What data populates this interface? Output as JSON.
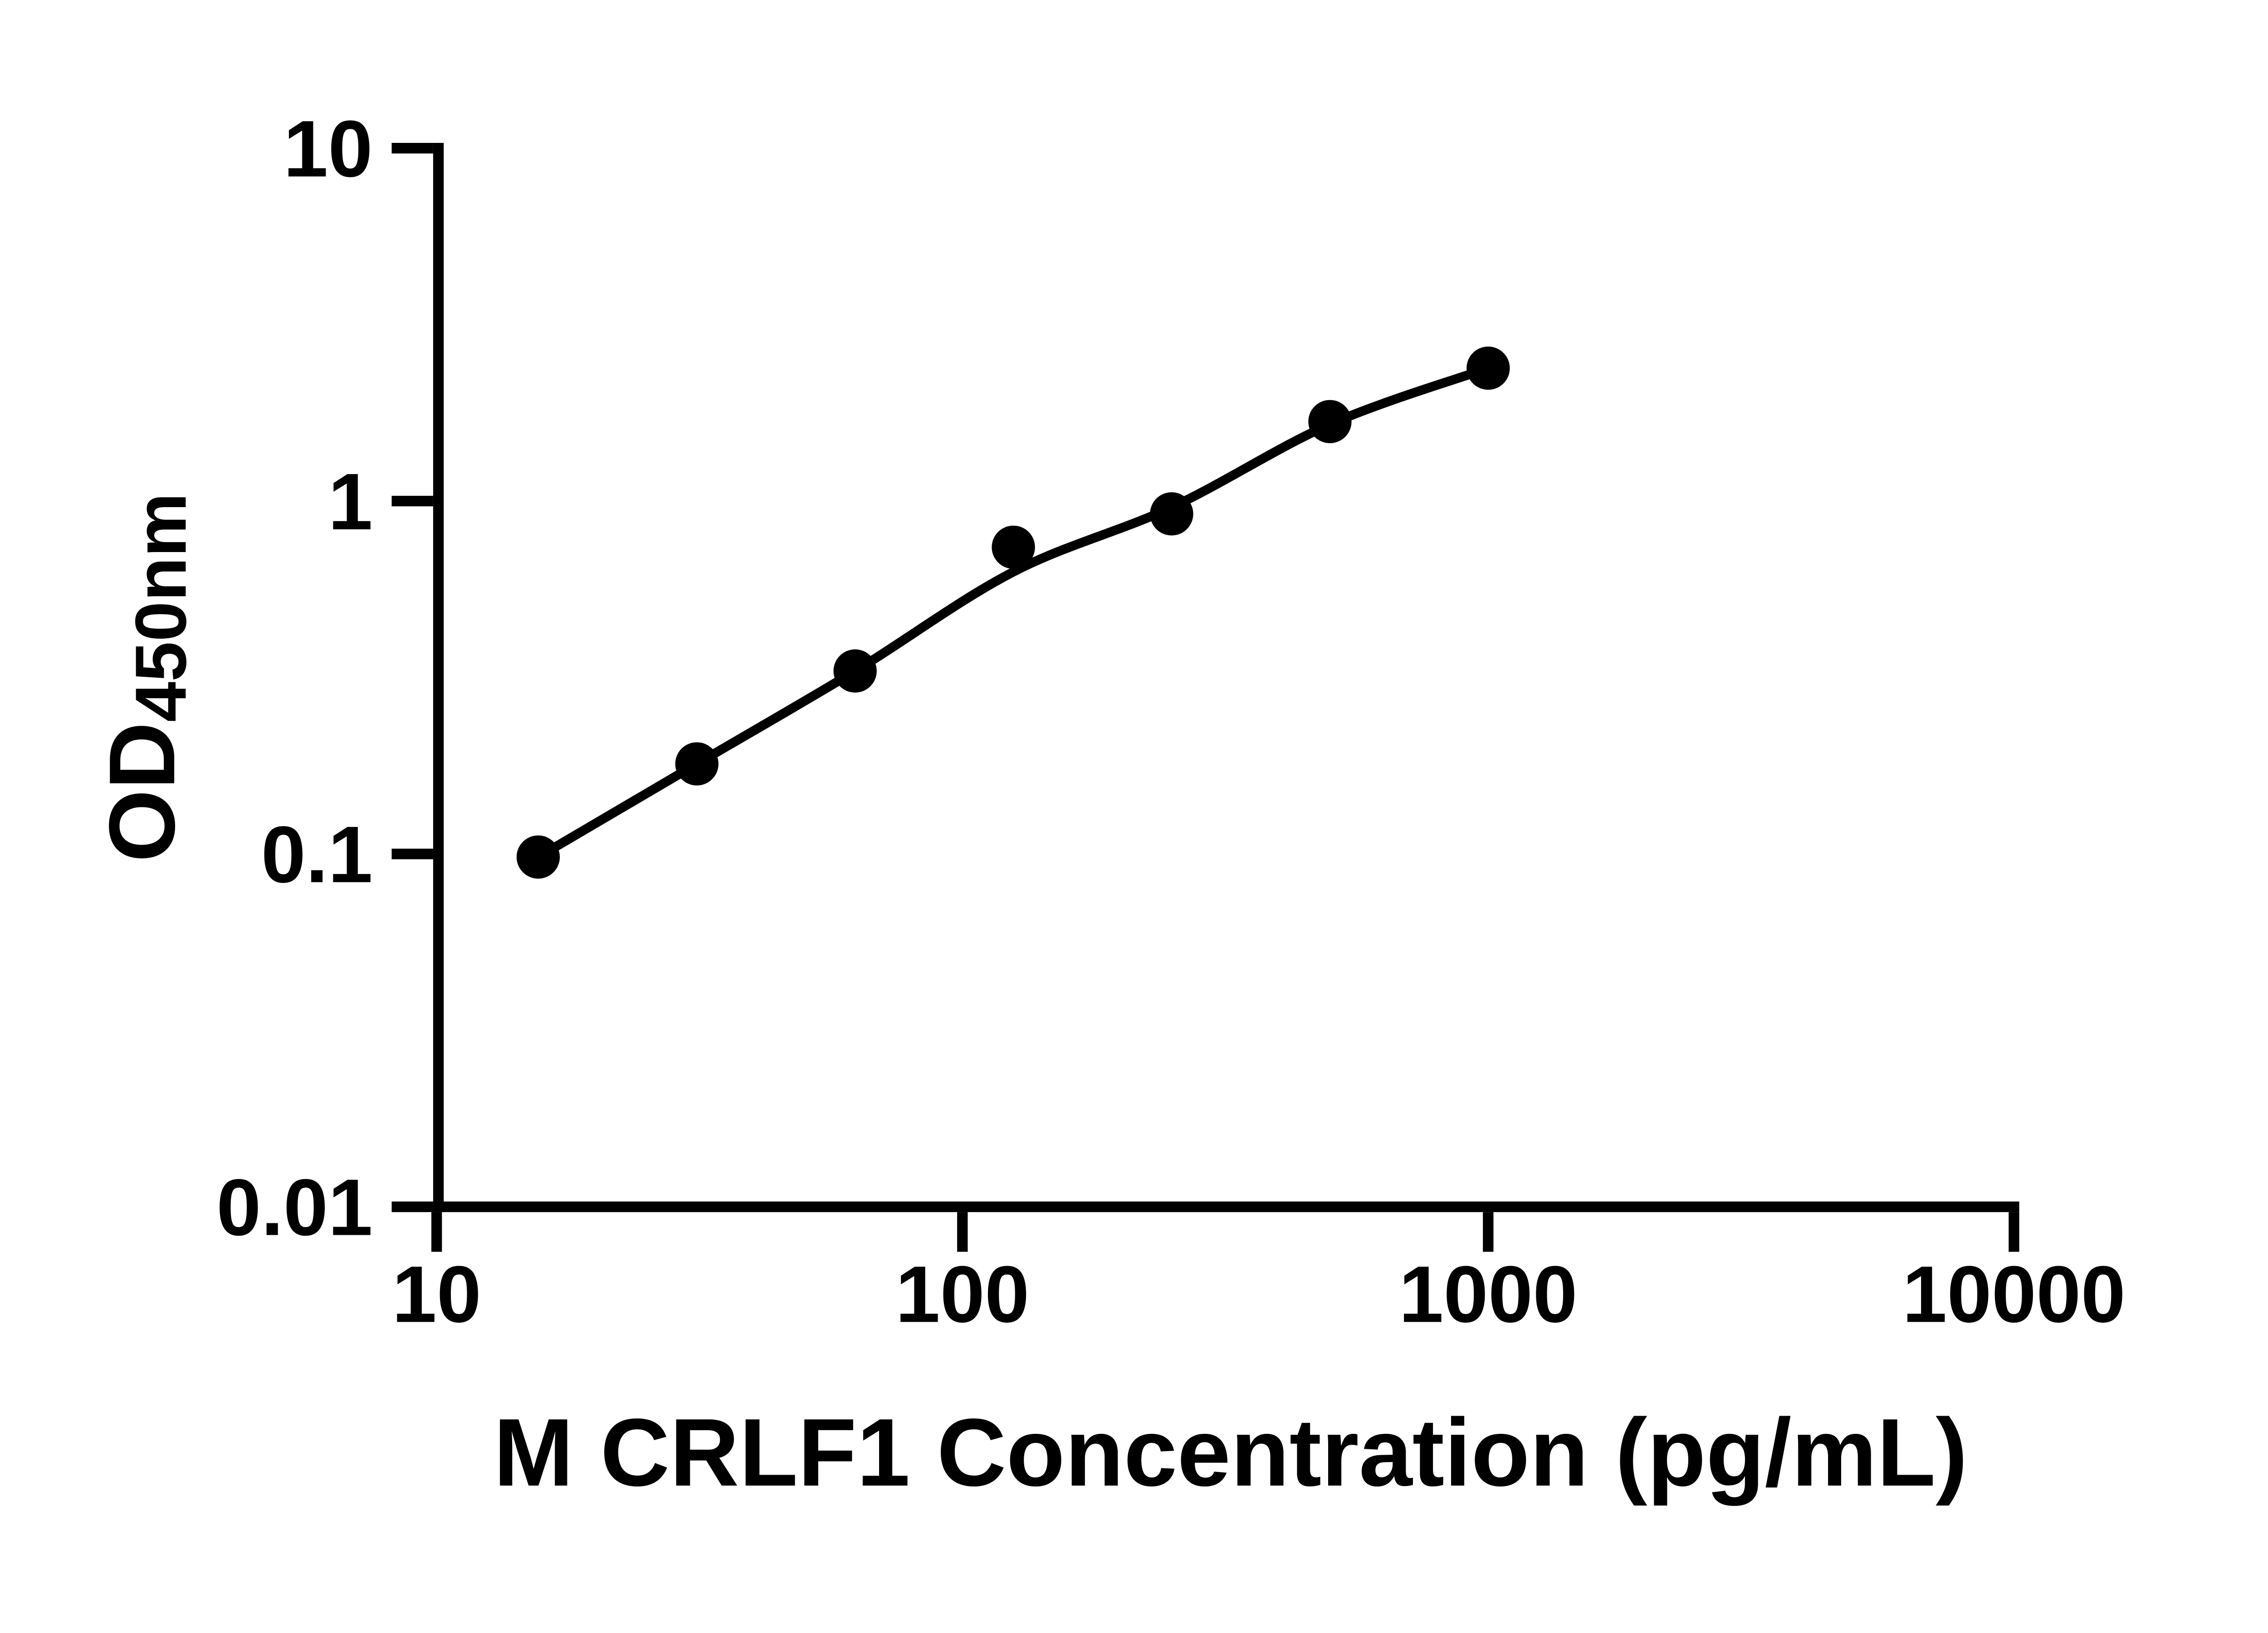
{
  "figure": {
    "background_color": "#ffffff",
    "axis_color": "#000000",
    "marker_color": "#000000",
    "x_axis_title": "M CRLF1 Concentration (pg/mL)",
    "y_axis_title_main": "OD",
    "y_axis_title_sub": "450nm"
  },
  "chart_data": {
    "type": "scatter",
    "title": "",
    "xlabel": "M CRLF1 Concentration (pg/mL)",
    "ylabel": "OD450nm",
    "xscale": "log",
    "yscale": "log",
    "xlim": [
      10,
      10000
    ],
    "ylim": [
      0.01,
      10
    ],
    "grid": false,
    "legend": "none",
    "x_tick_labels": [
      "10",
      "100",
      "1000",
      "10000"
    ],
    "x_tick_values": [
      10,
      100,
      1000,
      10000
    ],
    "y_tick_labels": [
      "10",
      "1",
      "0.1",
      "0.01"
    ],
    "y_tick_values": [
      10,
      1,
      0.1,
      0.01
    ],
    "series": [
      {
        "name": "standard-curve-points",
        "marker": "filled-circle",
        "color": "#000000",
        "x": [
          15.6,
          31.25,
          62.5,
          125,
          250,
          500,
          1000
        ],
        "y": [
          0.098,
          0.18,
          0.33,
          0.74,
          0.92,
          1.68,
          2.38
        ]
      }
    ],
    "fit_curve": {
      "name": "4pl-fit-line",
      "color": "#000000",
      "x": [
        15.6,
        31.25,
        62.5,
        125,
        250,
        500,
        1000
      ],
      "y": [
        0.098,
        0.18,
        0.33,
        0.63,
        0.96,
        1.65,
        2.38
      ]
    }
  }
}
